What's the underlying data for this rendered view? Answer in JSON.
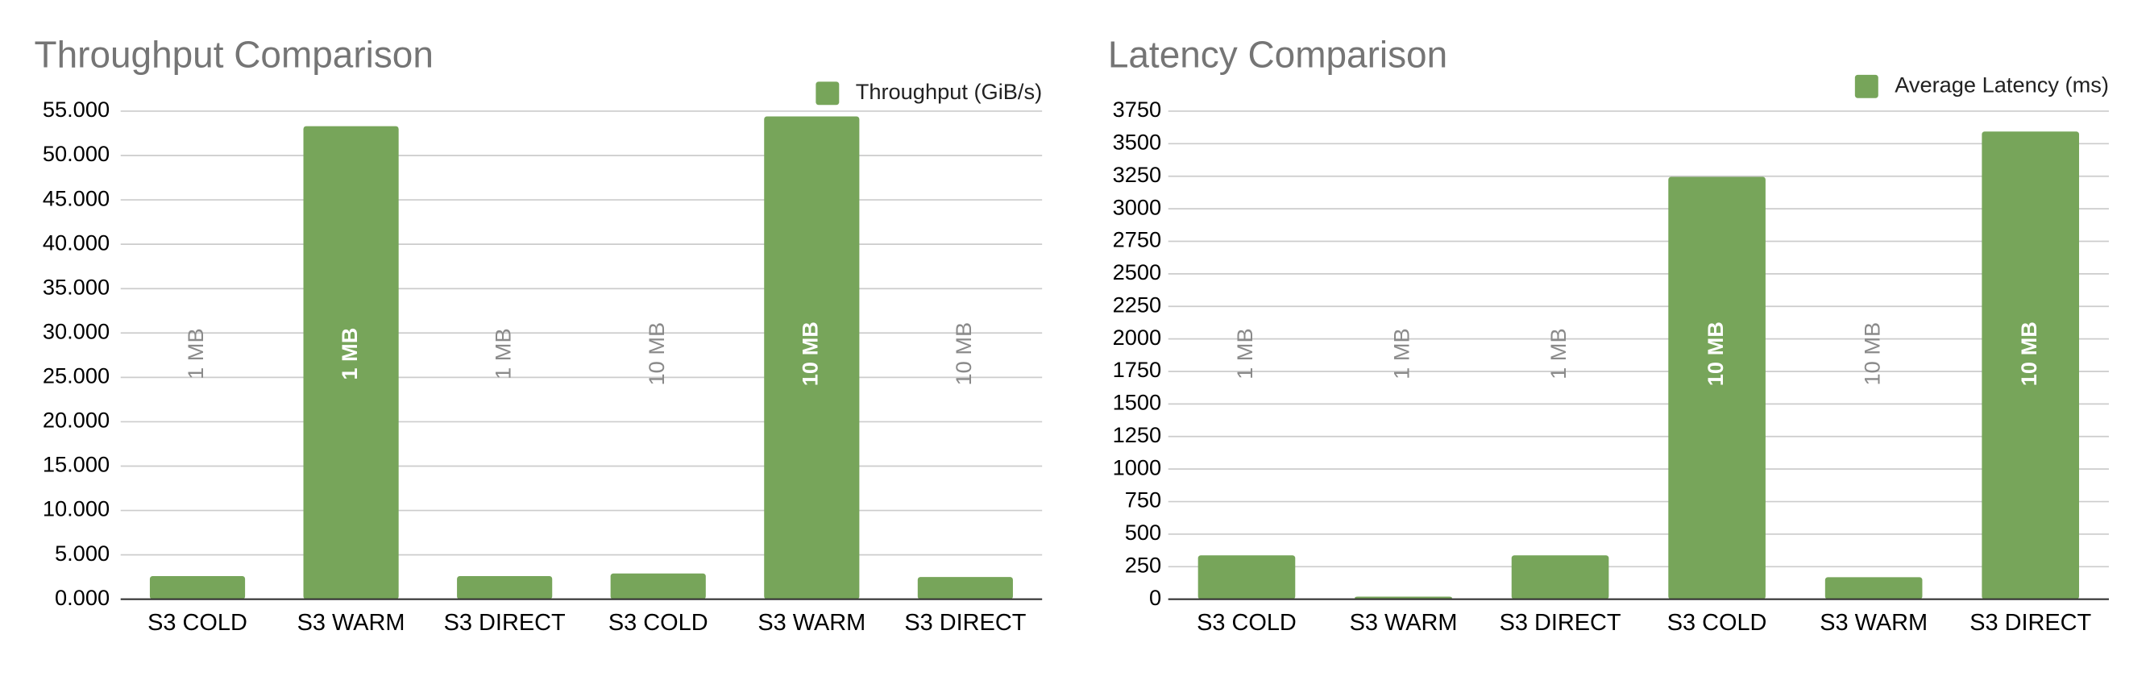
{
  "chart_data": [
    {
      "type": "bar",
      "title": "Throughput Comparison",
      "categories": [
        "S3 COLD",
        "S3 WARM",
        "S3 DIRECT",
        "S3 COLD",
        "S3 WARM",
        "S3 DIRECT"
      ],
      "annotations": [
        "1 MB",
        "1 MB",
        "1 MB",
        "10 MB",
        "10 MB",
        "10 MB"
      ],
      "series": [
        {
          "name": "Throughput (GiB/s)",
          "color": "#77a55a",
          "values": [
            2.6,
            53.3,
            2.6,
            2.9,
            54.4,
            2.5
          ]
        }
      ],
      "ylim": [
        0,
        55
      ],
      "yticks": [
        {
          "value": 0,
          "label": "0.000"
        },
        {
          "value": 5,
          "label": "5.000"
        },
        {
          "value": 10,
          "label": "10.000"
        },
        {
          "value": 15,
          "label": "15.000"
        },
        {
          "value": 20,
          "label": "20.000"
        },
        {
          "value": 25,
          "label": "25.000"
        },
        {
          "value": 30,
          "label": "30.000"
        },
        {
          "value": 35,
          "label": "35.000"
        },
        {
          "value": 40,
          "label": "40.000"
        },
        {
          "value": 45,
          "label": "45.000"
        },
        {
          "value": 50,
          "label": "50.000"
        },
        {
          "value": 55,
          "label": "55.000"
        }
      ],
      "grid": true,
      "legend": "top-right"
    },
    {
      "type": "bar",
      "title": "Latency Comparison",
      "categories": [
        "S3 COLD",
        "S3 WARM",
        "S3 DIRECT",
        "S3 COLD",
        "S3 WARM",
        "S3 DIRECT"
      ],
      "annotations": [
        "1 MB",
        "1 MB",
        "1 MB",
        "10 MB",
        "10 MB",
        "10 MB"
      ],
      "series": [
        {
          "name": "Average Latency (ms)",
          "color": "#77a55a",
          "values": [
            337,
            20,
            337,
            3245,
            169,
            3593
          ]
        }
      ],
      "ylim": [
        0,
        3750
      ],
      "yticks": [
        0,
        250,
        500,
        750,
        1000,
        1250,
        1500,
        1750,
        2000,
        2250,
        2500,
        2750,
        3000,
        3250,
        3500,
        3750
      ],
      "grid": true,
      "legend": "top-right"
    }
  ]
}
